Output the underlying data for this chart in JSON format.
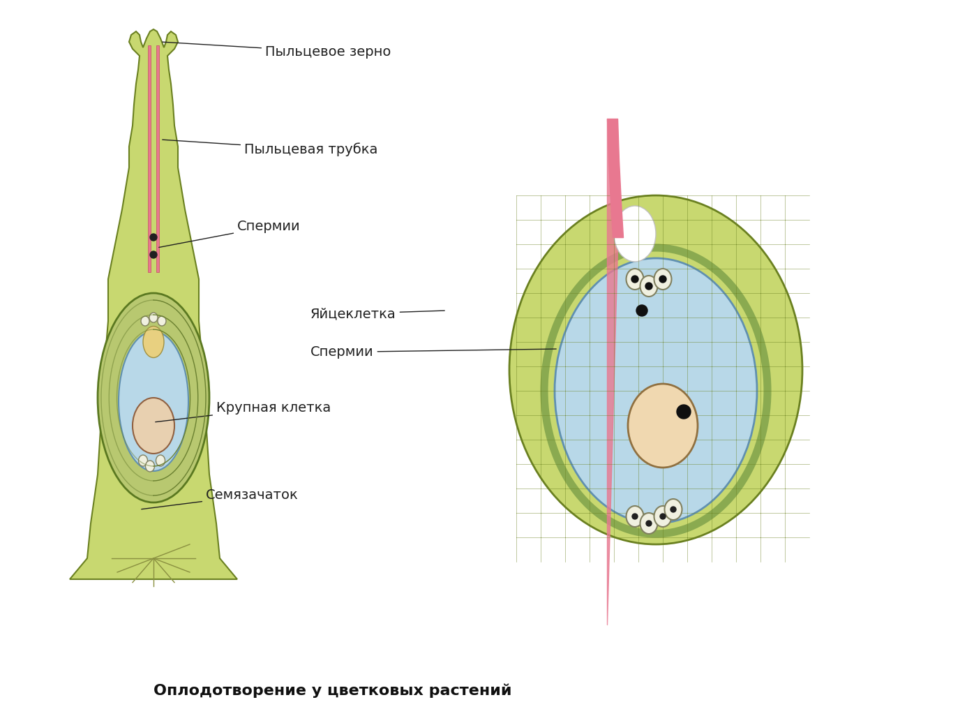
{
  "title": "Оплодотворение у цветковых растений",
  "title_fontsize": 16,
  "title_bold": true,
  "background_color": "#ffffff",
  "labels": {
    "pollen_grain": "Пыльцевое зерно",
    "pollen_tube": "Пыльцевая трубка",
    "spermii1": "Спермии",
    "egg_cell": "Яйцеклетка",
    "spermii2": "Спермии",
    "large_cell": "Крупная клетка",
    "semyazachatok": "Семязачаток"
  },
  "colors": {
    "pistil_outer": "#b8c96e",
    "pistil_inner": "#d4e07a",
    "ovule_blue": "#b8d8e8",
    "ovule_outline": "#8aaa6e",
    "pink_tube": "#e87890",
    "dark_green": "#6a8a3a",
    "light_green": "#c8d878",
    "cell_wall": "#8aaa5a",
    "egg_yellow": "#e8d888",
    "black": "#000000",
    "white": "#ffffff",
    "large_cell_pink": "#f0d0c0"
  }
}
